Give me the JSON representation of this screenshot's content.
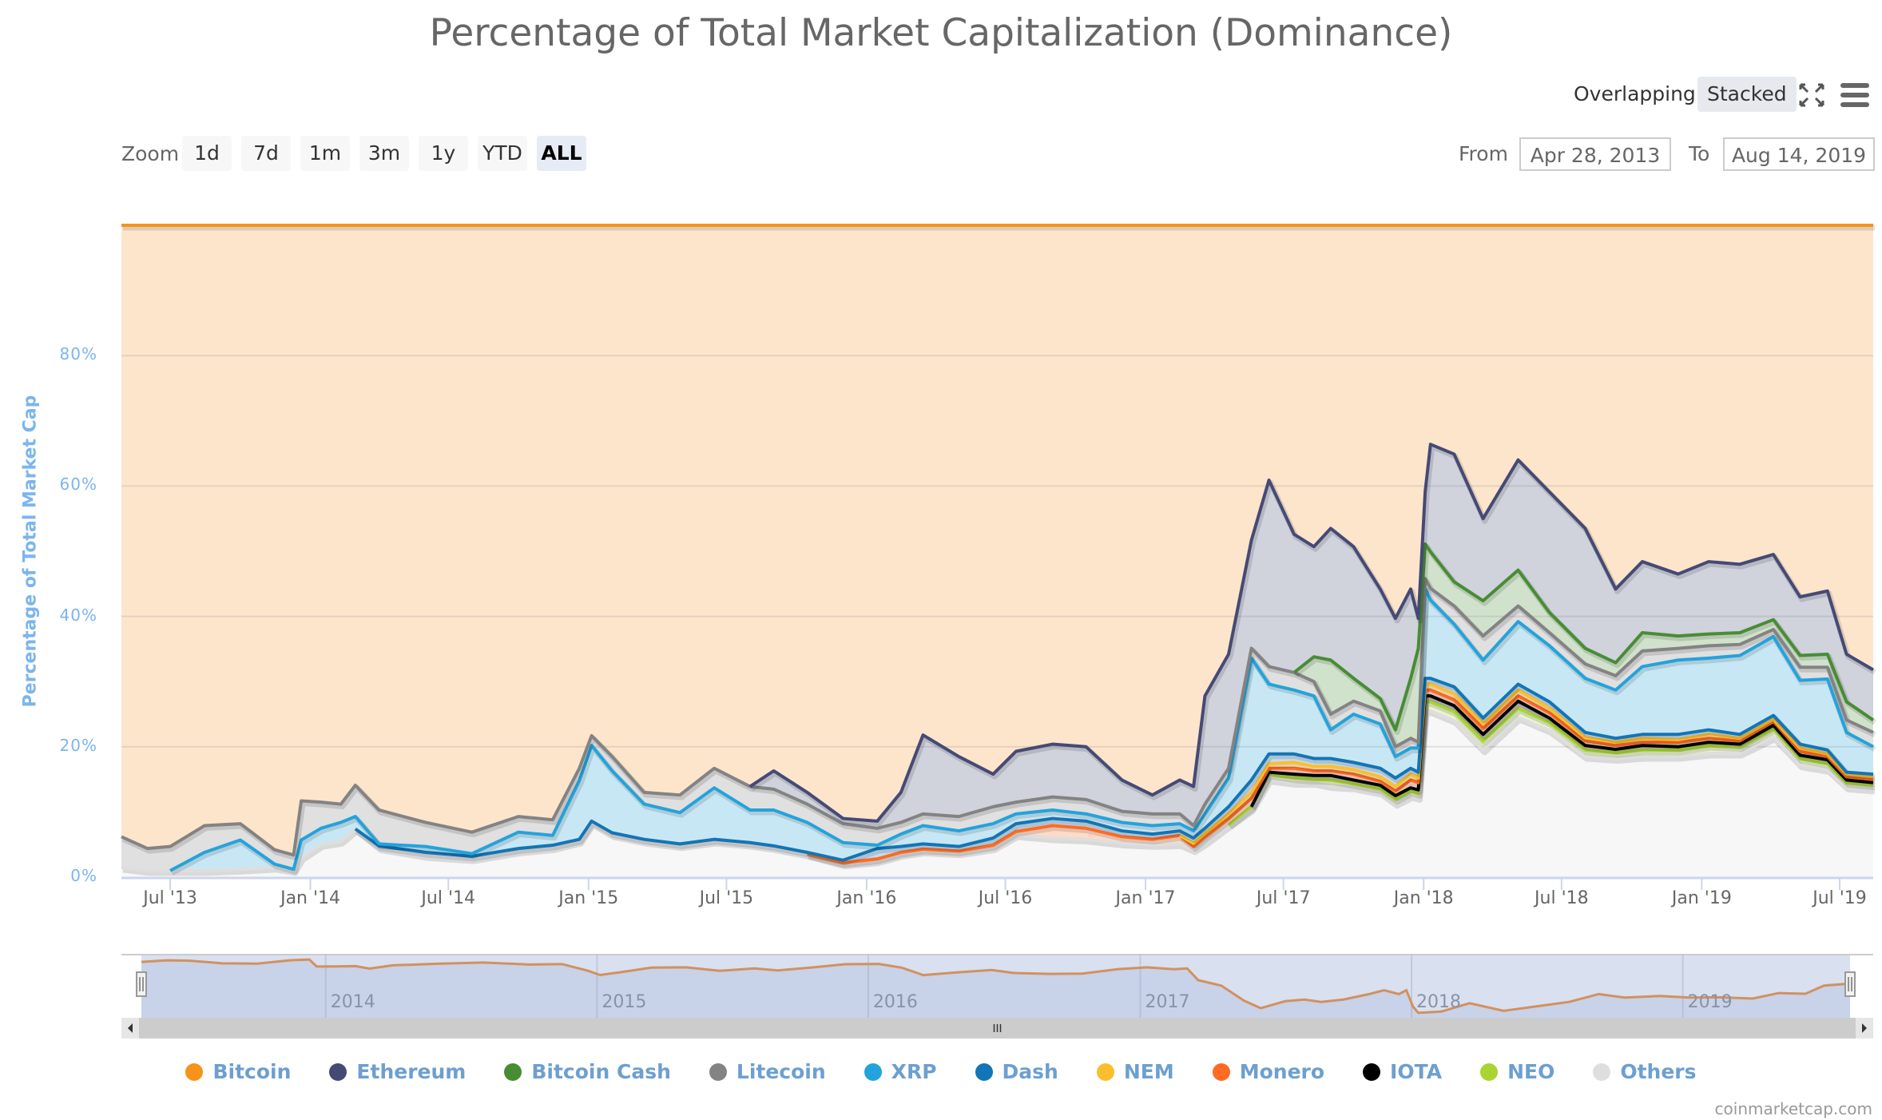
{
  "header": {
    "title": "Percentage of Total Market Capitalization (Dominance)",
    "modes": [
      {
        "label": "Overlapping",
        "active": false
      },
      {
        "label": "Stacked",
        "active": true
      }
    ],
    "fullscreen_icon": "fullscreen-icon",
    "menu_icon": "hamburger-menu-icon"
  },
  "range_selector": {
    "zoom_label": "Zoom",
    "buttons": [
      {
        "label": "1d",
        "active": false
      },
      {
        "label": "7d",
        "active": false
      },
      {
        "label": "1m",
        "active": false
      },
      {
        "label": "3m",
        "active": false
      },
      {
        "label": "1y",
        "active": false
      },
      {
        "label": "YTD",
        "active": false
      },
      {
        "label": "ALL",
        "active": true
      }
    ],
    "from_label": "From",
    "from_value": "Apr 28, 2013",
    "to_label": "To",
    "to_value": "Aug 14, 2019"
  },
  "navigator": {
    "year_labels": [
      "2014",
      "2015",
      "2016",
      "2017",
      "2018",
      "2019"
    ],
    "scroll_grip": "III",
    "left_arrow": "◀",
    "right_arrow": "▶"
  },
  "credits": "coinmarketcap.com",
  "chart_data": {
    "type": "area",
    "stacking": "percent",
    "title": "Percentage of Total Market Capitalization (Dominance)",
    "xlabel": "",
    "ylabel": "Percentage of Total Market Cap",
    "ylim": [
      0,
      100
    ],
    "yticks": [
      0,
      20,
      40,
      60,
      80
    ],
    "ytick_labels": [
      "0%",
      "20%",
      "40%",
      "60%",
      "80%"
    ],
    "xlim": [
      "2013-04-28",
      "2019-08-14"
    ],
    "xticks": [
      "2013-07-01",
      "2014-01-01",
      "2014-07-01",
      "2015-01-01",
      "2015-07-01",
      "2016-01-01",
      "2016-07-01",
      "2017-01-01",
      "2017-07-01",
      "2018-01-01",
      "2018-07-01",
      "2019-01-01",
      "2019-07-01"
    ],
    "xtick_labels": [
      "Jul '13",
      "Jan '14",
      "Jul '14",
      "Jan '15",
      "Jul '15",
      "Jan '16",
      "Jul '16",
      "Jan '17",
      "Jul '17",
      "Jan '18",
      "Jul '18",
      "Jan '19",
      "Jul '19"
    ],
    "grid": true,
    "legend_position": "bottom",
    "x": [
      "2013-04-28",
      "2013-06-01",
      "2013-07-01",
      "2013-08-15",
      "2013-10-01",
      "2013-11-15",
      "2013-12-10",
      "2013-12-20",
      "2014-01-15",
      "2014-02-10",
      "2014-03-01",
      "2014-04-01",
      "2014-06-01",
      "2014-08-01",
      "2014-10-01",
      "2014-11-15",
      "2014-12-20",
      "2015-01-05",
      "2015-02-01",
      "2015-03-15",
      "2015-05-01",
      "2015-06-15",
      "2015-08-01",
      "2015-09-01",
      "2015-10-15",
      "2015-12-01",
      "2016-01-15",
      "2016-02-15",
      "2016-03-15",
      "2016-05-01",
      "2016-06-15",
      "2016-07-15",
      "2016-09-01",
      "2016-10-15",
      "2016-12-01",
      "2017-01-10",
      "2017-02-15",
      "2017-03-05",
      "2017-03-20",
      "2017-04-20",
      "2017-05-20",
      "2017-06-12",
      "2017-07-15",
      "2017-08-10",
      "2017-09-01",
      "2017-10-01",
      "2017-11-05",
      "2017-11-25",
      "2017-12-15",
      "2017-12-25",
      "2018-01-03",
      "2018-01-10",
      "2018-02-10",
      "2018-03-20",
      "2018-05-05",
      "2018-06-15",
      "2018-08-01",
      "2018-09-10",
      "2018-10-15",
      "2018-12-01",
      "2019-01-10",
      "2019-02-20",
      "2019-04-05",
      "2019-05-10",
      "2019-06-15",
      "2019-07-10",
      "2019-08-14"
    ],
    "series": [
      {
        "name": "Bitcoin",
        "color": "#f7931a",
        "fill": "#fde5cc",
        "values": [
          93.8,
          95.6,
          95.3,
          92.1,
          91.8,
          95.8,
          96.6,
          88.3,
          88.5,
          88.8,
          85.9,
          89.7,
          91.6,
          93.1,
          90.7,
          91.2,
          83.3,
          78.3,
          81.5,
          87.0,
          87.4,
          83.3,
          86.1,
          83.7,
          87.0,
          91.0,
          91.4,
          87.0,
          78.2,
          81.5,
          84.2,
          80.7,
          79.6,
          80.0,
          85.1,
          87.4,
          85.1,
          86.1,
          72.2,
          65.8,
          48.3,
          39.1,
          47.4,
          49.3,
          46.5,
          49.3,
          55.8,
          60.3,
          55.8,
          60.3,
          40.9,
          33.6,
          35.1,
          45.0,
          36.0,
          40.9,
          46.5,
          55.8,
          51.6,
          53.5,
          51.6,
          52.0,
          50.5,
          57.0,
          56.1,
          65.8,
          68.2
        ]
      },
      {
        "name": "Ethereum",
        "color": "#454a75",
        "fill": "#d0d2dc",
        "values": [
          0,
          0,
          0,
          0,
          0,
          0,
          0,
          0,
          0,
          0,
          0,
          0,
          0,
          0,
          0,
          0,
          0,
          0,
          0,
          0,
          0,
          0,
          0,
          2.8,
          1.8,
          0.8,
          1.1,
          4.6,
          12.1,
          9.2,
          5.0,
          7.8,
          8.1,
          8.1,
          4.8,
          2.9,
          5.2,
          6.0,
          16.6,
          17.5,
          16.6,
          28.6,
          21.2,
          16.9,
          20.2,
          20.2,
          16.8,
          17.1,
          13.7,
          4.6,
          8.0,
          16.5,
          19.6,
          12.6,
          16.9,
          18.5,
          18.4,
          11.3,
          10.9,
          9.5,
          11.1,
          10.5,
          10.0,
          9.0,
          9.7,
          7.3,
          7.7
        ]
      },
      {
        "name": "Bitcoin Cash",
        "color": "#478d34",
        "fill": "#d1e2cc",
        "values": [
          0,
          0,
          0,
          0,
          0,
          0,
          0,
          0,
          0,
          0,
          0,
          0,
          0,
          0,
          0,
          0,
          0,
          0,
          0,
          0,
          0,
          0,
          0,
          0,
          0,
          0,
          0,
          0,
          0,
          0,
          0,
          0,
          0,
          0,
          0,
          0,
          0,
          0,
          0,
          0,
          0,
          0,
          0,
          3.8,
          8.3,
          3.5,
          1.9,
          2.6,
          9.2,
          14.4,
          5.3,
          5.6,
          3.7,
          5.4,
          5.5,
          3.1,
          2.4,
          2.0,
          2.8,
          1.9,
          1.8,
          1.8,
          1.5,
          1.8,
          2.0,
          2.8,
          1.9
        ]
      },
      {
        "name": "Litecoin",
        "color": "#838383",
        "fill": "#e0e0e0",
        "values": [
          4.7,
          3.4,
          3.7,
          4.1,
          2.5,
          2.2,
          2.2,
          6.0,
          4.0,
          2.8,
          4.8,
          5.2,
          3.7,
          3.3,
          2.4,
          2.4,
          1.9,
          1.5,
          2.2,
          1.8,
          2.7,
          3.0,
          3.6,
          3.2,
          2.8,
          2.9,
          2.6,
          1.8,
          1.8,
          2.2,
          2.6,
          1.8,
          2.0,
          2.2,
          1.7,
          1.8,
          1.5,
          0.8,
          1.5,
          1.5,
          1.5,
          2.7,
          2.7,
          2.2,
          2.4,
          2.0,
          2.0,
          1.5,
          1.5,
          0.9,
          1.5,
          1.8,
          2.8,
          3.7,
          2.4,
          2.0,
          2.2,
          2.2,
          2.4,
          1.8,
          1.9,
          1.7,
          1.1,
          2.0,
          1.8,
          1.9,
          2.2
        ]
      },
      {
        "name": "XRP",
        "color": "#23a3dc",
        "fill": "#c8e7f5",
        "values": [
          0,
          0,
          0,
          2.8,
          4.5,
          0.5,
          0.2,
          2.7,
          2.5,
          2.9,
          1.9,
          0.3,
          0.9,
          0.4,
          2.5,
          1.5,
          9.0,
          11.6,
          9.5,
          5.4,
          4.8,
          7.9,
          5.0,
          5.5,
          4.6,
          2.7,
          0.5,
          1.9,
          2.8,
          2.4,
          2.2,
          1.5,
          1.3,
          1.1,
          1.3,
          1.3,
          1.1,
          1.1,
          2.2,
          4.4,
          18.7,
          10.7,
          9.8,
          9.6,
          4.4,
          7.4,
          6.8,
          3.3,
          3.1,
          3.7,
          13.8,
          12.0,
          9.6,
          8.9,
          9.6,
          8.6,
          8.3,
          7.4,
          10.4,
          11.4,
          11.0,
          12.1,
          12.1,
          9.8,
          10.9,
          6.1,
          4.2
        ]
      },
      {
        "name": "Dash",
        "color": "#1275b6",
        "fill": "#c4dcee",
        "values": [
          0,
          0,
          0,
          0,
          0,
          0,
          0,
          0,
          0,
          0,
          0,
          0.3,
          0.5,
          0.4,
          0.4,
          0.4,
          0.3,
          0.3,
          0.3,
          0.3,
          0.3,
          0.3,
          0.3,
          0.3,
          0.3,
          0.4,
          1.6,
          0.9,
          0.8,
          0.7,
          1.1,
          1.2,
          1.1,
          1.1,
          0.9,
          0.8,
          0.7,
          0.8,
          0.8,
          1.1,
          1.9,
          1.5,
          1.3,
          1.2,
          1.2,
          1.1,
          1.3,
          1.3,
          0.9,
          0.9,
          0.9,
          0.9,
          1.1,
          0.9,
          0.9,
          1.0,
          0.8,
          0.6,
          0.6,
          0.8,
          0.7,
          0.6,
          0.6,
          0.6,
          0.6,
          0.3,
          0.4
        ]
      },
      {
        "name": "NEM",
        "color": "#fbbf2e",
        "fill": "#feefca",
        "values": [
          0,
          0,
          0,
          0,
          0,
          0,
          0,
          0,
          0,
          0,
          0,
          0,
          0,
          0,
          0,
          0,
          0,
          0,
          0,
          0,
          0,
          0,
          0,
          0,
          0,
          0,
          0,
          0,
          0,
          0,
          0,
          0,
          0,
          0,
          0,
          0,
          0,
          0.5,
          0.5,
          0.7,
          0.9,
          0.7,
          0.9,
          0.7,
          0.7,
          0.7,
          0.7,
          0.7,
          0.9,
          0.7,
          0.9,
          0.9,
          0.9,
          0.7,
          0.9,
          0.7,
          0.5,
          0.5,
          0.6,
          0.4,
          0.6,
          0.4,
          0.3,
          0.5,
          0.4,
          0.4,
          0.4
        ]
      },
      {
        "name": "Monero",
        "color": "#ff6b22",
        "fill": "#ffdac8",
        "values": [
          0,
          0,
          0,
          0,
          0,
          0,
          0,
          0,
          0,
          0,
          0,
          0,
          0,
          0,
          0,
          0,
          0,
          0,
          0,
          0,
          0,
          0,
          0,
          0,
          0,
          0.2,
          0.3,
          0.3,
          0.3,
          0.3,
          0.4,
          0.5,
          1.9,
          1.7,
          1.0,
          0.8,
          1.3,
          0.5,
          0.9,
          1.0,
          1.3,
          0.6,
          0.9,
          0.7,
          0.7,
          0.9,
          0.6,
          0.7,
          1.2,
          1.1,
          0.9,
          0.9,
          0.9,
          0.9,
          0.8,
          0.8,
          0.7,
          0.6,
          0.5,
          0.7,
          0.6,
          0.5,
          0.6,
          0.6,
          0.5,
          0.5,
          0.5
        ]
      },
      {
        "name": "IOTA",
        "color": "#000000",
        "fill": "#bfbfbf",
        "values": [
          0,
          0,
          0,
          0,
          0,
          0,
          0,
          0,
          0,
          0,
          0,
          0,
          0,
          0,
          0,
          0,
          0,
          0,
          0,
          0,
          0,
          0,
          0,
          0,
          0,
          0,
          0,
          0,
          0,
          0,
          0,
          0,
          0,
          0,
          0,
          0,
          0,
          0,
          0,
          0,
          0,
          0.3,
          0.6,
          0.6,
          0.7,
          0.6,
          0.6,
          0.6,
          0.5,
          0.6,
          0.9,
          0.9,
          0.9,
          1.0,
          1.1,
          0.7,
          0.7,
          0.5,
          0.7,
          0.5,
          0.5,
          0.4,
          0.5,
          0.5,
          0.6,
          0.4,
          0.4
        ]
      },
      {
        "name": "NEO",
        "color": "#a9d432",
        "fill": "#e9f4cc",
        "values": [
          0,
          0,
          0,
          0,
          0,
          0,
          0,
          0,
          0,
          0,
          0,
          0,
          0,
          0,
          0,
          0,
          0,
          0,
          0,
          0,
          0,
          0,
          0,
          0,
          0,
          0,
          0,
          0,
          0,
          0,
          0,
          0,
          0,
          0,
          0,
          0,
          0,
          0,
          0,
          0,
          0.3,
          0.8,
          0.7,
          0.5,
          0.9,
          0.5,
          0.5,
          0.6,
          0.7,
          0.6,
          1.4,
          1.4,
          1.4,
          1.4,
          1.4,
          1.2,
          1.0,
          0.9,
          1.0,
          1.0,
          1.2,
          1.0,
          1.3,
          1.0,
          0.9,
          0.7,
          0.6
        ]
      },
      {
        "name": "Others",
        "color": "#dedede",
        "fill": "#f7f7f7",
        "values": [
          1.5,
          1.0,
          1.0,
          1.0,
          1.2,
          1.5,
          1.0,
          3.0,
          5.0,
          5.5,
          7.4,
          4.5,
          3.3,
          2.8,
          4.0,
          4.5,
          5.5,
          8.3,
          6.5,
          5.5,
          4.8,
          5.5,
          5.0,
          4.5,
          3.5,
          2.0,
          2.5,
          3.5,
          4.0,
          3.7,
          4.5,
          6.5,
          6.0,
          5.8,
          5.2,
          5.0,
          5.1,
          4.2,
          5.3,
          8.0,
          10.5,
          15.0,
          14.5,
          14.5,
          14.0,
          13.8,
          13.0,
          11.3,
          12.5,
          12.2,
          25.5,
          25.5,
          24.0,
          19.5,
          24.5,
          22.5,
          18.5,
          18.2,
          18.5,
          18.5,
          19.0,
          19.0,
          21.5,
          17.2,
          16.5,
          13.8,
          13.5
        ]
      }
    ]
  }
}
